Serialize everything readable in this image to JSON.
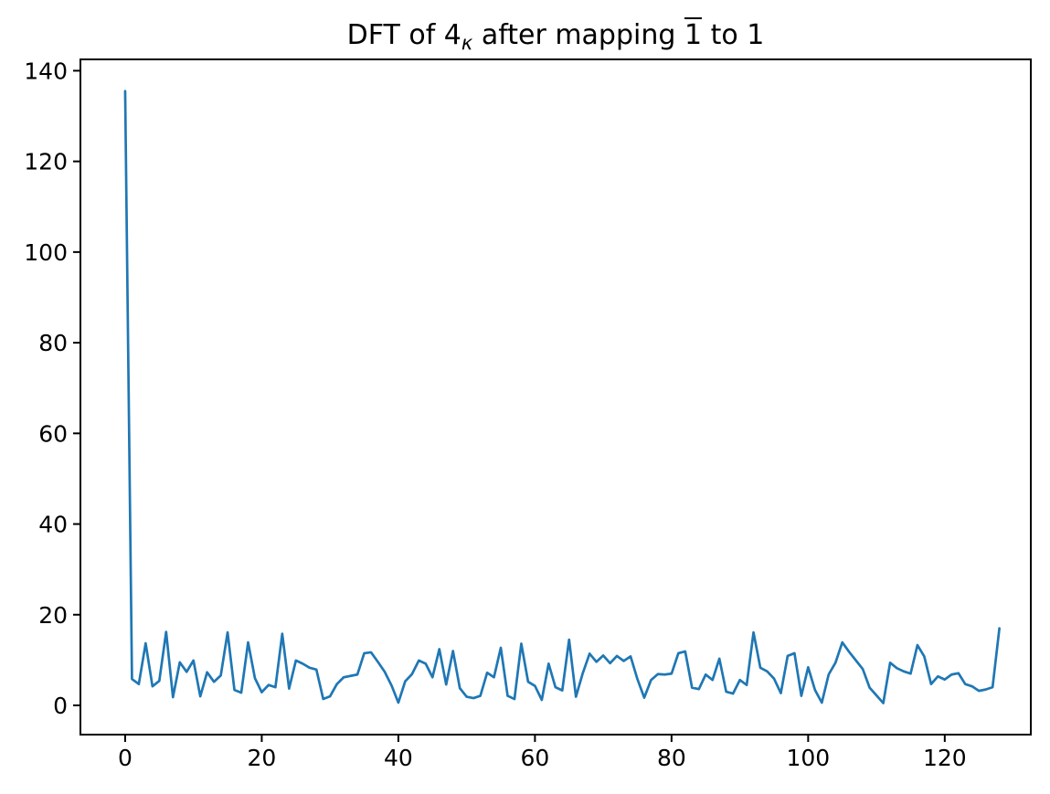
{
  "title": {
    "pre": "DFT of 4",
    "sub": "κ",
    "mid": " after mapping ",
    "over": "1",
    "post": " to 1"
  },
  "chart_data": {
    "type": "line",
    "title": "DFT of 4κ after mapping 1̄ to 1",
    "xlabel": "",
    "ylabel": "",
    "grid": false,
    "legend": "none",
    "line_color": "#1f77b4",
    "axis_color": "#000000",
    "background_color": "#ffffff",
    "xlim": [
      -6.55,
      132.6
    ],
    "ylim": [
      -6.45,
      142.5
    ],
    "xticks": [
      0,
      20,
      40,
      60,
      80,
      100,
      120
    ],
    "yticks": [
      0,
      20,
      40,
      60,
      80,
      100,
      120,
      140
    ],
    "x_start": 0,
    "x_step": 1,
    "values": [
      135.5,
      5.8,
      4.7,
      13.7,
      4.2,
      5.4,
      16.2,
      1.8,
      9.5,
      7.4,
      9.9,
      2.0,
      7.3,
      5.2,
      6.6,
      16.1,
      3.4,
      2.8,
      13.9,
      6.0,
      2.9,
      4.5,
      4.0,
      15.8,
      3.7,
      9.9,
      9.2,
      8.3,
      7.9,
      1.4,
      2.0,
      4.7,
      6.2,
      6.5,
      6.8,
      11.5,
      11.7,
      9.6,
      7.4,
      4.4,
      0.6,
      5.3,
      6.9,
      9.9,
      9.2,
      6.2,
      12.4,
      4.6,
      12.0,
      3.8,
      1.9,
      1.6,
      2.1,
      7.2,
      6.2,
      12.7,
      2.1,
      1.4,
      13.6,
      5.2,
      4.3,
      1.2,
      9.2,
      4.0,
      3.3,
      14.5,
      1.9,
      7.1,
      11.4,
      9.6,
      11.0,
      9.3,
      10.9,
      9.8,
      10.8,
      5.8,
      1.7,
      5.6,
      6.9,
      6.8,
      7.0,
      11.5,
      11.9,
      3.9,
      3.6,
      6.8,
      5.6,
      10.3,
      3.0,
      2.6,
      5.6,
      4.5,
      16.1,
      8.3,
      7.5,
      5.9,
      2.7,
      10.9,
      11.5,
      2.1,
      8.4,
      3.4,
      0.6,
      6.8,
      9.4,
      13.9,
      11.8,
      9.9,
      8.0,
      3.9,
      2.2,
      0.5,
      9.4,
      8.2,
      7.5,
      7.0,
      13.3,
      10.8,
      4.7,
      6.4,
      5.7,
      6.8,
      7.1,
      4.7,
      4.2,
      3.2,
      3.5,
      4.0,
      17.0
    ]
  }
}
